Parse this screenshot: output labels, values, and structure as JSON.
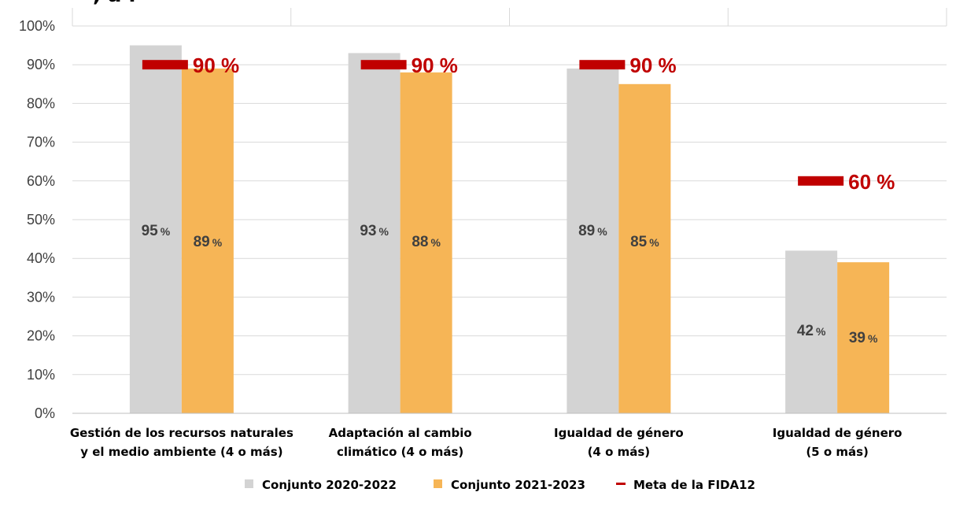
{
  "header_fragment": ", a l",
  "chart_data": {
    "type": "bar",
    "categories": [
      [
        "Gestión de los recursos naturales",
        "y el medio ambiente (4 o más)"
      ],
      [
        "Adaptación al cambio",
        "climático (4 o más)"
      ],
      [
        "Igualdad de género",
        "(4 o más)"
      ],
      [
        "Igualdad de género",
        "(5 o más)"
      ]
    ],
    "series": [
      {
        "name": "Conjunto 2020-2022",
        "color": "#d3d3d3",
        "values": [
          95,
          93,
          89,
          42
        ],
        "labels": [
          "95 %",
          "93 %",
          "89 %",
          "42 %"
        ]
      },
      {
        "name": "Conjunto 2021-2023",
        "color": "#f6b556",
        "values": [
          89,
          88,
          85,
          39
        ],
        "labels": [
          "89 %",
          "88 %",
          "85 %",
          "39 %"
        ]
      }
    ],
    "targets": {
      "name": "Meta de la FIDA12",
      "color": "#c00000",
      "values": [
        90,
        90,
        90,
        60
      ],
      "labels": [
        "90 %",
        "90 %",
        "90 %",
        "60 %"
      ]
    },
    "y_ticks": [
      "0%",
      "10%",
      "20%",
      "30%",
      "40%",
      "50%",
      "60%",
      "70%",
      "80%",
      "90%",
      "100%"
    ],
    "ylim": [
      0,
      100
    ],
    "grid": true,
    "legend_position": "bottom-center"
  }
}
